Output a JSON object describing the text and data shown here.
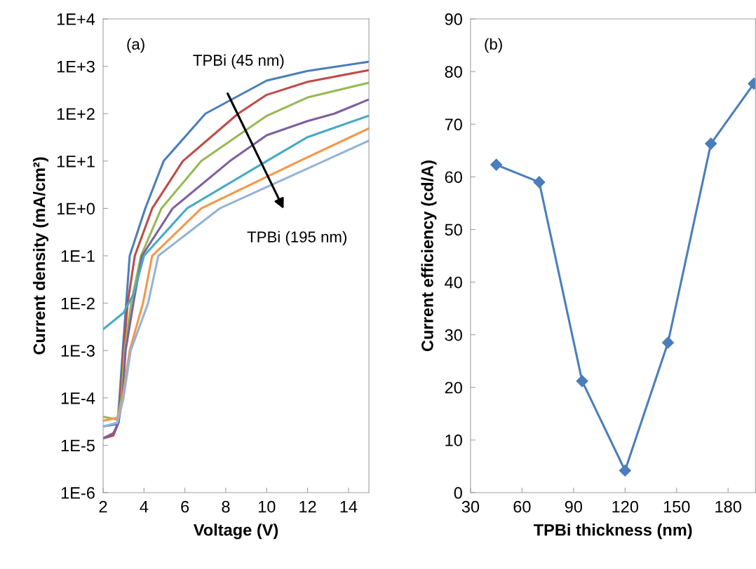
{
  "chart_data": [
    {
      "type": "line",
      "xlabel": "Voltage (V)",
      "ylabel": "Current density (mA/cm²)",
      "log": "y",
      "xlim": [
        2,
        15
      ],
      "xticks": [
        2,
        4,
        6,
        8,
        10,
        12,
        14
      ],
      "ylim": [
        1e-06,
        10000.0
      ],
      "yticks": [
        {
          "value": 1e-06,
          "label": "1E-6"
        },
        {
          "value": 1e-05,
          "label": "1E-5"
        },
        {
          "value": 0.0001,
          "label": "1E-4"
        },
        {
          "value": 0.001,
          "label": "1E-3"
        },
        {
          "value": 0.01,
          "label": "1E-2"
        },
        {
          "value": 0.1,
          "label": "1E-1"
        },
        {
          "value": 1,
          "label": "1E+0"
        },
        {
          "value": 10,
          "label": "1E+1"
        },
        {
          "value": 100,
          "label": "1E+2"
        },
        {
          "value": 1000,
          "label": "1E+3"
        },
        {
          "value": 10000,
          "label": "1E+4"
        }
      ],
      "grid": false,
      "marker": "none",
      "line_style": "solid",
      "annotations": [
        "(a)",
        "TPBi (45 nm)",
        "TPBi (195 nm)"
      ],
      "series": [
        {
          "color": "#4a7ebb",
          "x": [
            2,
            2.7,
            2.8,
            2.96,
            3.13,
            3.3,
            4.06,
            4.96,
            7.0,
            10,
            12,
            15
          ],
          "values": [
            2.5e-05,
            2.8e-05,
            0.0001,
            0.001,
            0.01,
            0.1,
            1,
            10,
            100,
            500,
            800,
            1250
          ]
        },
        {
          "color": "#be4b48",
          "x": [
            2,
            2.5,
            2.75,
            2.85,
            3.0,
            3.2,
            3.55,
            4.4,
            5.9,
            8.6,
            10,
            12,
            15
          ],
          "values": [
            1.4e-05,
            1.6e-05,
            3e-05,
            0.0001,
            0.001,
            0.01,
            0.1,
            1,
            10,
            100,
            250,
            470,
            830
          ]
        },
        {
          "color": "#98b954",
          "x": [
            2,
            2.7,
            2.9,
            3.05,
            3.37,
            3.85,
            4.85,
            6.8,
            10,
            12,
            15
          ],
          "values": [
            4e-05,
            3.5e-05,
            0.0001,
            0.001,
            0.01,
            0.1,
            1,
            10,
            90,
            220,
            450
          ]
        },
        {
          "color": "#7d60a0",
          "x": [
            2,
            2.5,
            2.75,
            2.95,
            3.1,
            3.48,
            3.9,
            5.4,
            8.2,
            10,
            12,
            13.3,
            15
          ],
          "values": [
            1.4e-05,
            1.8e-05,
            3e-05,
            0.0001,
            0.001,
            0.01,
            0.1,
            1,
            10,
            35,
            70,
            100,
            200
          ]
        },
        {
          "color": "#46aac5",
          "x": [
            2,
            3.0,
            3.5,
            4.0,
            6.1,
            10,
            12,
            15
          ],
          "values": [
            0.0028,
            0.0063,
            0.016,
            0.1,
            1,
            10,
            32,
            91
          ]
        },
        {
          "color": "#f79646",
          "x": [
            2,
            2.7,
            2.95,
            3.3,
            3.95,
            4.4,
            6.8,
            11.6,
            15
          ],
          "values": [
            3.3e-05,
            3.8e-05,
            0.0001,
            0.001,
            0.01,
            0.1,
            1,
            10,
            49
          ]
        },
        {
          "color": "#95b3d7",
          "x": [
            2,
            2.7,
            3.0,
            3.35,
            4.2,
            4.7,
            7.7,
            12.8,
            15
          ],
          "values": [
            2.5e-05,
            3e-05,
            0.0001,
            0.001,
            0.01,
            0.1,
            1,
            10,
            27
          ]
        }
      ]
    },
    {
      "type": "line",
      "xlabel": "TPBi thickness (nm)",
      "ylabel": "Current efficiency (cd/A)",
      "xlim": [
        30,
        196
      ],
      "xticks": [
        30,
        60,
        90,
        120,
        150,
        180
      ],
      "ylim": [
        0,
        90
      ],
      "yticks": [
        0,
        10,
        20,
        30,
        40,
        50,
        60,
        70,
        80,
        90
      ],
      "grid": false,
      "marker": "diamond",
      "line_style": "solid",
      "annotations": [
        "(b)"
      ],
      "series": [
        {
          "color": "#4a7ebb",
          "x": [
            45,
            70,
            95,
            120,
            145,
            170,
            195
          ],
          "values": [
            62.3,
            59,
            21.2,
            4.2,
            28.5,
            66.3,
            77.7
          ]
        }
      ]
    }
  ]
}
